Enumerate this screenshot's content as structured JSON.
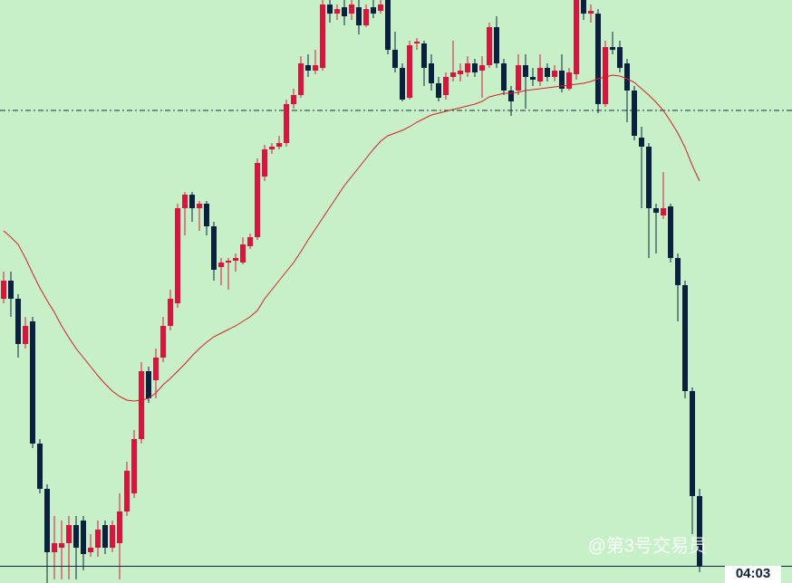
{
  "chart_data": {
    "type": "candlestick",
    "open": [
      314,
      334,
      314,
      264,
      289,
      154,
      104,
      34,
      39,
      44,
      64,
      69,
      34,
      39,
      64,
      39,
      44,
      79,
      99,
      159,
      234,
      224,
      249,
      284,
      309,
      414,
      429,
      414,
      419,
      394,
      349,
      354,
      356,
      354,
      372,
      382,
      449,
      479,
      482,
      486,
      529,
      539,
      572,
      566,
      569,
      639,
      629,
      636,
      629,
      636,
      616,
      636,
      632,
      644,
      589,
      569,
      536,
      596,
      596,
      574,
      552,
      539,
      559,
      562,
      564,
      574,
      566,
      572,
      614,
      574,
      544,
      544,
      572,
      559,
      554,
      569,
      559,
      566,
      546,
      562,
      644,
      629,
      629,
      529,
      592,
      592,
      574,
      544,
      492,
      482,
      414,
      406,
      416,
      359,
      329,
      212,
      96
    ],
    "high": [
      344,
      344,
      319,
      294,
      294,
      159,
      109,
      74,
      69,
      74,
      74,
      74,
      54,
      69,
      69,
      69,
      99,
      134,
      169,
      244,
      239,
      259,
      294,
      324,
      419,
      432,
      432,
      422,
      422,
      399,
      359,
      359,
      364,
      382,
      386,
      469,
      484,
      486,
      494,
      534,
      546,
      582,
      584,
      589,
      644,
      644,
      639,
      644,
      644,
      644,
      639,
      644,
      644,
      644,
      609,
      574,
      599,
      602,
      599,
      584,
      559,
      564,
      599,
      574,
      582,
      579,
      582,
      619,
      626,
      579,
      549,
      584,
      584,
      569,
      584,
      574,
      572,
      584,
      569,
      644,
      644,
      639,
      634,
      599,
      609,
      599,
      579,
      549,
      504,
      486,
      419,
      454,
      419,
      364,
      334,
      216,
      104
    ],
    "low": [
      309,
      294,
      249,
      259,
      149,
      99,
      0,
      4,
      4,
      4,
      4,
      14,
      29,
      29,
      32,
      34,
      4,
      74,
      94,
      154,
      199,
      204,
      244,
      279,
      304,
      384,
      399,
      389,
      384,
      334,
      329,
      324,
      344,
      352,
      369,
      379,
      444,
      474,
      479,
      482,
      524,
      536,
      559,
      562,
      566,
      619,
      622,
      616,
      622,
      606,
      614,
      624,
      629,
      584,
      564,
      532,
      534,
      589,
      549,
      544,
      532,
      534,
      554,
      554,
      559,
      559,
      536,
      569,
      569,
      539,
      516,
      539,
      524,
      549,
      549,
      554,
      554,
      542,
      544,
      556,
      622,
      619,
      519,
      526,
      584,
      564,
      509,
      489,
      414,
      359,
      364,
      402,
      354,
      289,
      204,
      54,
      12
    ],
    "close": [
      334,
      314,
      264,
      284,
      154,
      104,
      34,
      44,
      44,
      64,
      39,
      32,
      39,
      59,
      39,
      64,
      79,
      124,
      159,
      234,
      204,
      249,
      284,
      314,
      414,
      429,
      414,
      419,
      394,
      346,
      354,
      356,
      359,
      374,
      382,
      464,
      479,
      482,
      486,
      529,
      539,
      574,
      566,
      572,
      639,
      629,
      634,
      626,
      639,
      616,
      634,
      629,
      639,
      589,
      569,
      534,
      594,
      598,
      569,
      552,
      536,
      559,
      564,
      566,
      574,
      564,
      572,
      614,
      574,
      544,
      532,
      572,
      559,
      556,
      569,
      559,
      566,
      546,
      564,
      644,
      629,
      632,
      529,
      592,
      589,
      569,
      544,
      494,
      482,
      414,
      409,
      414,
      359,
      329,
      212,
      96,
      19
    ],
    "ma": [
      389,
      382,
      374,
      359,
      342,
      326,
      312,
      299,
      284,
      271,
      259,
      249,
      239,
      229,
      220,
      212,
      206,
      202,
      201,
      202,
      204,
      210,
      219,
      226,
      234,
      242,
      251,
      259,
      266,
      272,
      276,
      280,
      284,
      289,
      294,
      301,
      314,
      324,
      334,
      344,
      354,
      366,
      379,
      391,
      403,
      415,
      427,
      439,
      449,
      459,
      469,
      479,
      488,
      494,
      497,
      500,
      504,
      509,
      513,
      517,
      519,
      521,
      523,
      525,
      527,
      529,
      532,
      537,
      539,
      541,
      541,
      542,
      544,
      545,
      546,
      547,
      548,
      549,
      550,
      551,
      552,
      554,
      557,
      559,
      561,
      560,
      557,
      553,
      546,
      539,
      531,
      522,
      510,
      497,
      481,
      461,
      444
    ],
    "ylim": [
      0,
      644
    ],
    "hline": 522,
    "up_color": "#dc143c",
    "down_color": "#0b2140",
    "ma_color": "#d81e28",
    "background": "#c8f0c8",
    "time_label": "04:03",
    "watermark": "@第3号交易员"
  }
}
